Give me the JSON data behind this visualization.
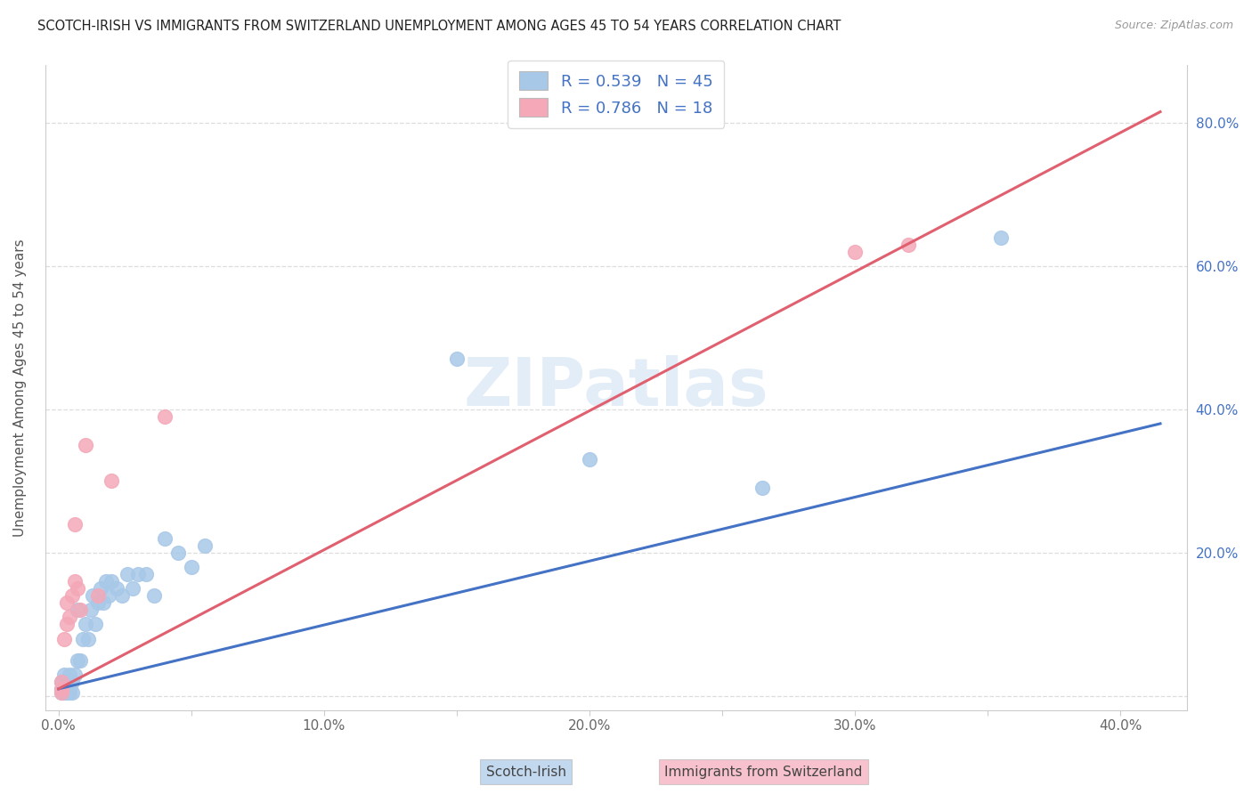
{
  "title": "SCOTCH-IRISH VS IMMIGRANTS FROM SWITZERLAND UNEMPLOYMENT AMONG AGES 45 TO 54 YEARS CORRELATION CHART",
  "source": "Source: ZipAtlas.com",
  "ylabel": "Unemployment Among Ages 45 to 54 years",
  "x_ticks": [
    0.0,
    0.05,
    0.1,
    0.15,
    0.2,
    0.25,
    0.3,
    0.35,
    0.4
  ],
  "x_tick_labels": [
    "0.0%",
    "",
    "10.0%",
    "",
    "20.0%",
    "",
    "30.0%",
    "",
    "40.0%"
  ],
  "y_ticks": [
    0.0,
    0.2,
    0.4,
    0.6,
    0.8
  ],
  "y_tick_labels": [
    "",
    "20.0%",
    "40.0%",
    "60.0%",
    "80.0%"
  ],
  "xlim": [
    -0.005,
    0.425
  ],
  "ylim": [
    -0.02,
    0.88
  ],
  "blue_dot_color": "#A8C8E8",
  "pink_dot_color": "#F4A8B8",
  "blue_line_color": "#4472C4",
  "pink_line_color": "#E06070",
  "right_tick_color": "#4472C4",
  "legend_blue_R": "0.539",
  "legend_blue_N": "45",
  "legend_pink_R": "0.786",
  "legend_pink_N": "18",
  "label_scotch": "Scotch-Irish",
  "label_swiss": "Immigrants from Switzerland",
  "watermark": "ZIPatlas",
  "scotch_x": [
    0.001,
    0.001,
    0.001,
    0.002,
    0.002,
    0.002,
    0.003,
    0.003,
    0.003,
    0.004,
    0.004,
    0.004,
    0.005,
    0.005,
    0.006,
    0.007,
    0.007,
    0.008,
    0.009,
    0.01,
    0.011,
    0.012,
    0.013,
    0.014,
    0.015,
    0.016,
    0.017,
    0.018,
    0.019,
    0.02,
    0.022,
    0.024,
    0.026,
    0.028,
    0.03,
    0.033,
    0.036,
    0.04,
    0.045,
    0.05,
    0.055,
    0.15,
    0.2,
    0.265,
    0.355
  ],
  "scotch_y": [
    0.005,
    0.01,
    0.02,
    0.005,
    0.01,
    0.03,
    0.005,
    0.01,
    0.02,
    0.005,
    0.01,
    0.03,
    0.005,
    0.02,
    0.03,
    0.05,
    0.12,
    0.05,
    0.08,
    0.1,
    0.08,
    0.12,
    0.14,
    0.1,
    0.13,
    0.15,
    0.13,
    0.16,
    0.14,
    0.16,
    0.15,
    0.14,
    0.17,
    0.15,
    0.17,
    0.17,
    0.14,
    0.22,
    0.2,
    0.18,
    0.21,
    0.47,
    0.33,
    0.29,
    0.64
  ],
  "swiss_x": [
    0.001,
    0.001,
    0.001,
    0.002,
    0.003,
    0.003,
    0.004,
    0.005,
    0.006,
    0.006,
    0.007,
    0.008,
    0.01,
    0.015,
    0.02,
    0.04,
    0.3,
    0.32
  ],
  "swiss_y": [
    0.005,
    0.01,
    0.02,
    0.08,
    0.1,
    0.13,
    0.11,
    0.14,
    0.16,
    0.24,
    0.15,
    0.12,
    0.35,
    0.14,
    0.3,
    0.39,
    0.62,
    0.63
  ],
  "blue_line_x0": 0.0,
  "blue_line_y0": 0.01,
  "blue_line_x1": 0.415,
  "blue_line_y1": 0.38,
  "pink_line_x0": 0.0,
  "pink_line_y0": 0.01,
  "pink_line_x1": 0.415,
  "pink_line_y1": 0.815
}
